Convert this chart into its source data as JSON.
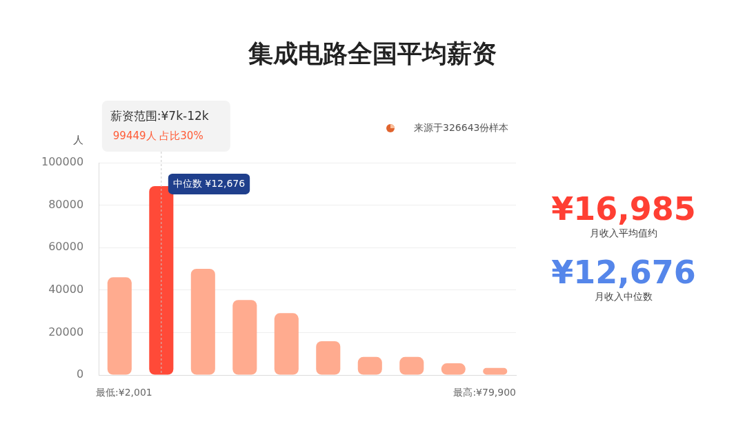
{
  "chart_data": {
    "type": "bar",
    "title": "集成电路全国平均薪资",
    "ylabel": "人",
    "categories": [
      null,
      null,
      null,
      null,
      null,
      null,
      null,
      null,
      null,
      null
    ],
    "values": [
      46000,
      89000,
      50000,
      35300,
      29100,
      15900,
      8500,
      8500,
      5500,
      3300
    ],
    "colors": [
      "#ffab8f",
      "#ff4a38",
      "#ffab8f",
      "#ffab8f",
      "#ffab8f",
      "#ffab8f",
      "#ffab8f",
      "#ffab8f",
      "#ffab8f",
      "#ffab8f"
    ],
    "ylim": [
      0,
      100000
    ],
    "yticks": [
      0,
      20000,
      40000,
      60000,
      80000,
      100000
    ],
    "grid": "y",
    "legend": false,
    "annotations": [
      "薪资范围:¥7k-12k",
      "99449人 占比30%",
      "中位数 ¥12,676",
      "来源于326643份样本",
      "最低:¥2,001",
      "最高:¥79,900",
      "¥16,985",
      "月收入平均值约",
      "¥12,676",
      "月收入中位数"
    ]
  }
}
